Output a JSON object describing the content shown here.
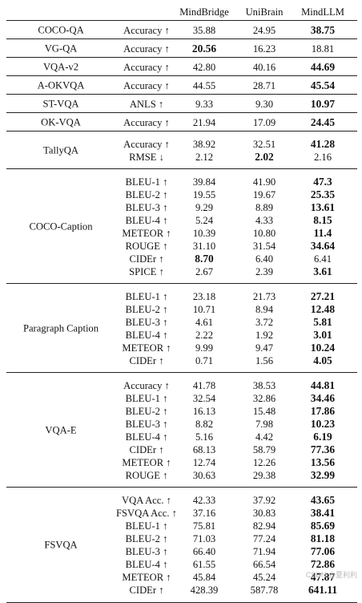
{
  "header": {
    "models": [
      "MindBridge",
      "UniBrain",
      "MindLLM"
    ]
  },
  "groups": [
    {
      "task": "COCO-QA",
      "rows": [
        {
          "metric": "Accuracy ↑",
          "values": [
            "35.88",
            "24.95",
            "38.75"
          ],
          "best": 2
        }
      ]
    },
    {
      "task": "VG-QA",
      "rows": [
        {
          "metric": "Accuracy ↑",
          "values": [
            "20.56",
            "16.23",
            "18.81"
          ],
          "best": 0
        }
      ]
    },
    {
      "task": "VQA-v2",
      "rows": [
        {
          "metric": "Accuracy ↑",
          "values": [
            "42.80",
            "40.16",
            "44.69"
          ],
          "best": 2
        }
      ]
    },
    {
      "task": "A-OKVQA",
      "rows": [
        {
          "metric": "Accuracy ↑",
          "values": [
            "44.55",
            "28.71",
            "45.54"
          ],
          "best": 2
        }
      ]
    },
    {
      "task": "ST-VQA",
      "rows": [
        {
          "metric": "ANLS ↑",
          "values": [
            "9.33",
            "9.30",
            "10.97"
          ],
          "best": 2
        }
      ]
    },
    {
      "task": "OK-VQA",
      "rows": [
        {
          "metric": "Accuracy ↑",
          "values": [
            "21.94",
            "17.09",
            "24.45"
          ],
          "best": 2
        }
      ]
    },
    {
      "task": "TallyQA",
      "rows": [
        {
          "metric": "Accuracy ↑",
          "values": [
            "38.92",
            "32.51",
            "41.28"
          ],
          "best": 2
        },
        {
          "metric": "RMSE ↓",
          "values": [
            "2.12",
            "2.02",
            "2.16"
          ],
          "best": 1
        }
      ]
    },
    {
      "task": "COCO-Caption",
      "rows": [
        {
          "metric": "BLEU-1 ↑",
          "values": [
            "39.84",
            "41.90",
            "47.3"
          ],
          "best": 2
        },
        {
          "metric": "BLEU-2 ↑",
          "values": [
            "19.55",
            "19.67",
            "25.35"
          ],
          "best": 2
        },
        {
          "metric": "BLEU-3 ↑",
          "values": [
            "9.29",
            "8.89",
            "13.61"
          ],
          "best": 2
        },
        {
          "metric": "BLEU-4 ↑",
          "values": [
            "5.24",
            "4.33",
            "8.15"
          ],
          "best": 2
        },
        {
          "metric": "METEOR ↑",
          "values": [
            "10.39",
            "10.80",
            "11.4"
          ],
          "best": 2
        },
        {
          "metric": "ROUGE ↑",
          "values": [
            "31.10",
            "31.54",
            "34.64"
          ],
          "best": 2
        },
        {
          "metric": "CIDEr ↑",
          "values": [
            "8.70",
            "6.40",
            "6.41"
          ],
          "best": 0
        },
        {
          "metric": "SPICE ↑",
          "values": [
            "2.67",
            "2.39",
            "3.61"
          ],
          "best": 2
        }
      ]
    },
    {
      "task": "Paragraph Caption",
      "rows": [
        {
          "metric": "BLEU-1 ↑",
          "values": [
            "23.18",
            "21.73",
            "27.21"
          ],
          "best": 2
        },
        {
          "metric": "BLEU-2 ↑",
          "values": [
            "10.71",
            "8.94",
            "12.48"
          ],
          "best": 2
        },
        {
          "metric": "BLEU-3 ↑",
          "values": [
            "4.61",
            "3.72",
            "5.81"
          ],
          "best": 2
        },
        {
          "metric": "BLEU-4 ↑",
          "values": [
            "2.22",
            "1.92",
            "3.01"
          ],
          "best": 2
        },
        {
          "metric": "METEOR ↑",
          "values": [
            "9.99",
            "9.47",
            "10.24"
          ],
          "best": 2
        },
        {
          "metric": "CIDEr ↑",
          "values": [
            "0.71",
            "1.56",
            "4.05"
          ],
          "best": 2
        }
      ]
    },
    {
      "task": "VQA-E",
      "rows": [
        {
          "metric": "Accuracy ↑",
          "values": [
            "41.78",
            "38.53",
            "44.81"
          ],
          "best": 2
        },
        {
          "metric": "BLEU-1 ↑",
          "values": [
            "32.54",
            "32.86",
            "34.46"
          ],
          "best": 2
        },
        {
          "metric": "BLEU-2 ↑",
          "values": [
            "16.13",
            "15.48",
            "17.86"
          ],
          "best": 2
        },
        {
          "metric": "BLEU-3 ↑",
          "values": [
            "8.82",
            "7.98",
            "10.23"
          ],
          "best": 2
        },
        {
          "metric": "BLEU-4 ↑",
          "values": [
            "5.16",
            "4.42",
            "6.19"
          ],
          "best": 2
        },
        {
          "metric": "CIDEr ↑",
          "values": [
            "68.13",
            "58.79",
            "77.36"
          ],
          "best": 2
        },
        {
          "metric": "METEOR ↑",
          "values": [
            "12.74",
            "12.26",
            "13.56"
          ],
          "best": 2
        },
        {
          "metric": "ROUGE ↑",
          "values": [
            "30.63",
            "29.38",
            "32.99"
          ],
          "best": 2
        }
      ]
    },
    {
      "task": "FSVQA",
      "rows": [
        {
          "metric": "VQA Acc. ↑",
          "values": [
            "42.33",
            "37.92",
            "43.65"
          ],
          "best": 2
        },
        {
          "metric": "FSVQA Acc. ↑",
          "values": [
            "37.16",
            "30.83",
            "38.41"
          ],
          "best": 2
        },
        {
          "metric": "BLEU-1 ↑",
          "values": [
            "75.81",
            "82.94",
            "85.69"
          ],
          "best": 2
        },
        {
          "metric": "BLEU-2 ↑",
          "values": [
            "71.03",
            "77.24",
            "81.18"
          ],
          "best": 2
        },
        {
          "metric": "BLEU-3 ↑",
          "values": [
            "66.40",
            "71.94",
            "77.06"
          ],
          "best": 2
        },
        {
          "metric": "BLEU-4 ↑",
          "values": [
            "61.55",
            "66.54",
            "72.86"
          ],
          "best": 2
        },
        {
          "metric": "METEOR ↑",
          "values": [
            "45.84",
            "45.24",
            "47.87"
          ],
          "best": 2
        },
        {
          "metric": "CIDEr ↑",
          "values": [
            "428.39",
            "587.78",
            "641.11"
          ],
          "best": 2
        }
      ]
    }
  ],
  "watermark": "CSDN @夏利利"
}
